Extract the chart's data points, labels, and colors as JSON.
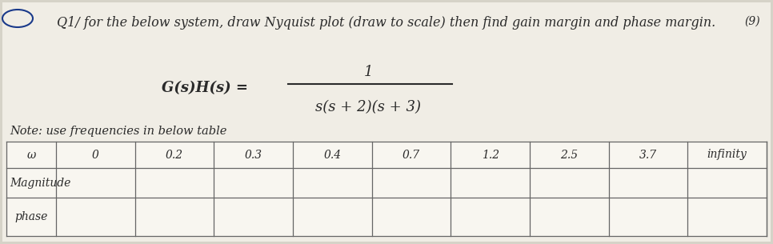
{
  "title_line": "Q1/ for the below system, draw Nyquist plot (draw to scale) then find gain margin and phase margin.",
  "equation_left": "G(s)H(s) =",
  "numerator": "1",
  "denominator": "s(s + 2)(s + 3)",
  "note": "Note: use frequencies in below table",
  "col_header": "ω",
  "columns": [
    "0",
    "0.2",
    "0.3",
    "0.4",
    "0.7",
    "1.2",
    "2.5",
    "3.7",
    "infinity"
  ],
  "row1_label": "Magnitude",
  "row2_label": "phase",
  "bg_color": "#d6d3c8",
  "paper_color": "#f0ede5",
  "table_color": "#ffffff",
  "text_color": "#2a2a2a",
  "marks": "(9)",
  "title_fontsize": 11.5,
  "note_fontsize": 10.5,
  "eq_fontsize": 13
}
